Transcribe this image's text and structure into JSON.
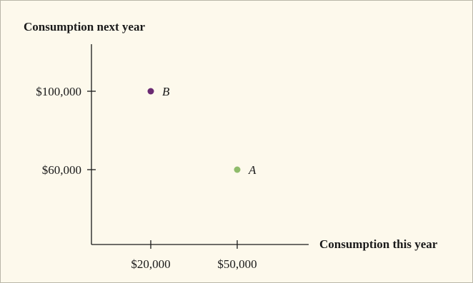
{
  "chart_data": {
    "type": "scatter",
    "xlabel": "Consumption this year",
    "ylabel": "Consumption next year",
    "x_ticks": [
      {
        "value": 20000,
        "label": "$20,000"
      },
      {
        "value": 50000,
        "label": "$50,000"
      }
    ],
    "y_ticks": [
      {
        "value": 60000,
        "label": "$60,000"
      },
      {
        "value": 100000,
        "label": "$100,000"
      }
    ],
    "points": [
      {
        "label": "B",
        "x": 20000,
        "y": 100000,
        "color": "#6a2a72"
      },
      {
        "label": "A",
        "x": 50000,
        "y": 60000,
        "color": "#8fbc6b"
      }
    ],
    "grid": false
  }
}
